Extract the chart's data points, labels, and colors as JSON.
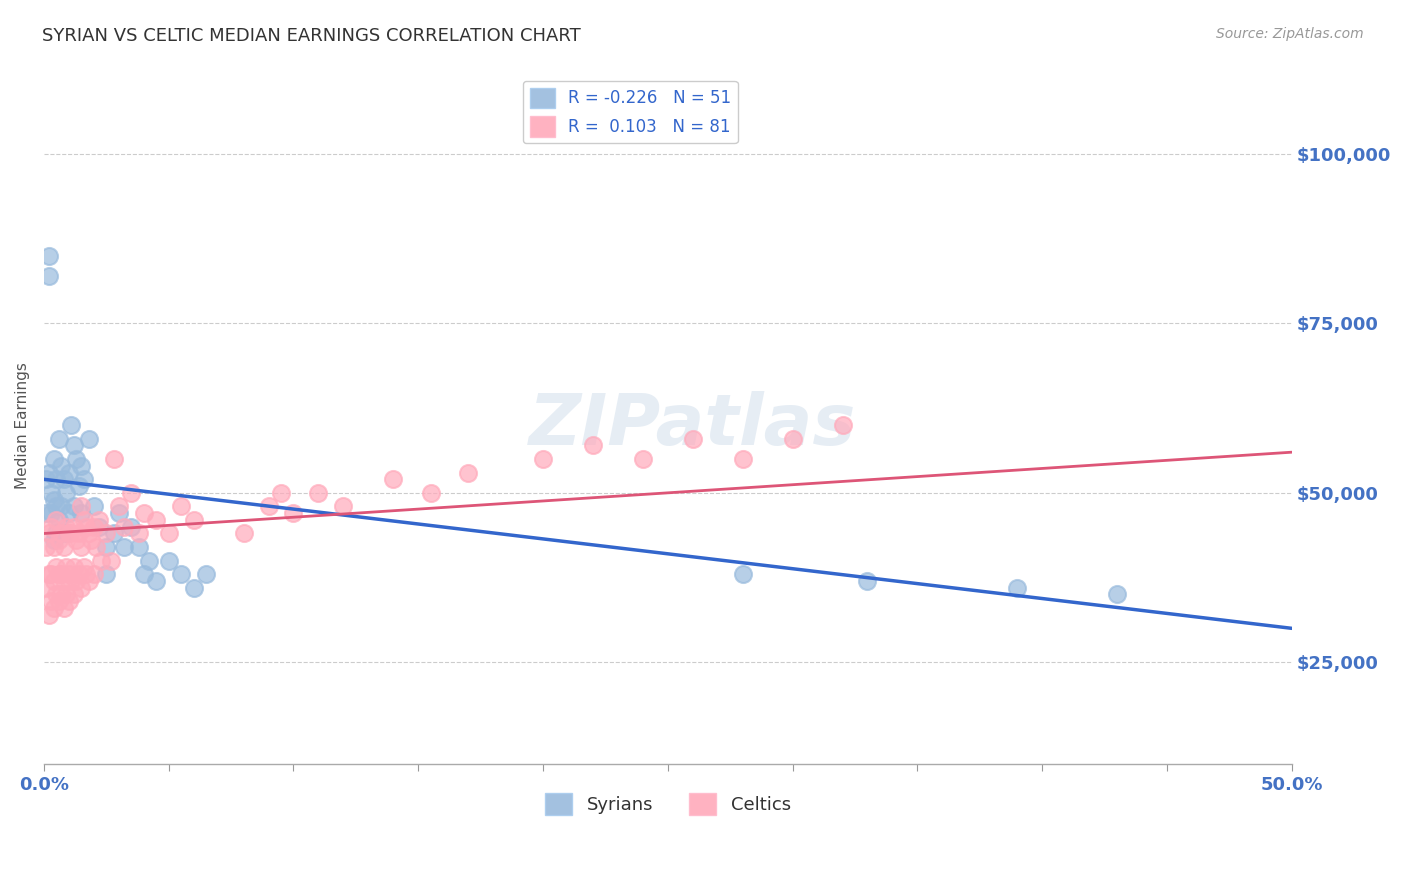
{
  "title": "SYRIAN VS CELTIC MEDIAN EARNINGS CORRELATION CHART",
  "source": "Source: ZipAtlas.com",
  "ylabel": "Median Earnings",
  "xlim": [
    0,
    0.5
  ],
  "ylim": [
    10000,
    110000
  ],
  "yticks": [
    25000,
    50000,
    75000,
    100000
  ],
  "ytick_labels": [
    "$25,000",
    "$50,000",
    "$75,000",
    "$100,000"
  ],
  "ytick_color": "#4472c4",
  "xtick_color": "#4472c4",
  "grid_color": "#cccccc",
  "bg_color": "#ffffff",
  "blue_color": "#99bbdd",
  "pink_color": "#ffaabb",
  "blue_line_color": "#3366cc",
  "pink_line_color": "#dd5577",
  "legend_blue_label": "R = -0.226   N = 51",
  "legend_pink_label": "R =  0.103   N = 81",
  "watermark": "ZIPatlas",
  "legend_labels": [
    "Syrians",
    "Celtics"
  ],
  "blue_line_x0": 0.0,
  "blue_line_y0": 52000,
  "blue_line_x1": 0.5,
  "blue_line_y1": 30000,
  "pink_line_x0": 0.0,
  "pink_line_y0": 44000,
  "pink_line_x1": 0.5,
  "pink_line_y1": 56000,
  "blue_scatter_x": [
    0.001,
    0.001,
    0.002,
    0.002,
    0.002,
    0.003,
    0.003,
    0.004,
    0.004,
    0.004,
    0.005,
    0.005,
    0.005,
    0.006,
    0.006,
    0.007,
    0.007,
    0.008,
    0.008,
    0.009,
    0.01,
    0.01,
    0.011,
    0.012,
    0.012,
    0.013,
    0.014,
    0.015,
    0.015,
    0.016,
    0.018,
    0.02,
    0.022,
    0.025,
    0.025,
    0.028,
    0.03,
    0.032,
    0.035,
    0.038,
    0.04,
    0.042,
    0.045,
    0.05,
    0.055,
    0.06,
    0.065,
    0.28,
    0.33,
    0.39,
    0.43
  ],
  "blue_scatter_y": [
    52000,
    47000,
    53000,
    85000,
    82000,
    50000,
    47000,
    55000,
    49000,
    43000,
    52000,
    48000,
    44000,
    58000,
    46000,
    54000,
    48000,
    52000,
    44000,
    50000,
    53000,
    47000,
    60000,
    57000,
    48000,
    55000,
    51000,
    54000,
    47000,
    52000,
    58000,
    48000,
    45000,
    42000,
    38000,
    44000,
    47000,
    42000,
    45000,
    42000,
    38000,
    40000,
    37000,
    40000,
    38000,
    36000,
    38000,
    38000,
    37000,
    36000,
    35000
  ],
  "pink_scatter_x": [
    0.001,
    0.001,
    0.002,
    0.002,
    0.002,
    0.003,
    0.003,
    0.003,
    0.004,
    0.004,
    0.004,
    0.005,
    0.005,
    0.005,
    0.006,
    0.006,
    0.006,
    0.007,
    0.007,
    0.007,
    0.008,
    0.008,
    0.008,
    0.009,
    0.009,
    0.009,
    0.01,
    0.01,
    0.01,
    0.011,
    0.011,
    0.012,
    0.012,
    0.012,
    0.013,
    0.013,
    0.014,
    0.014,
    0.015,
    0.015,
    0.015,
    0.016,
    0.016,
    0.017,
    0.017,
    0.018,
    0.018,
    0.019,
    0.02,
    0.02,
    0.021,
    0.022,
    0.023,
    0.025,
    0.027,
    0.028,
    0.03,
    0.032,
    0.035,
    0.038,
    0.04,
    0.045,
    0.05,
    0.055,
    0.06,
    0.08,
    0.09,
    0.095,
    0.1,
    0.11,
    0.12,
    0.14,
    0.155,
    0.17,
    0.2,
    0.22,
    0.24,
    0.26,
    0.28,
    0.3,
    0.32
  ],
  "pink_scatter_y": [
    42000,
    36000,
    44000,
    38000,
    32000,
    45000,
    38000,
    34000,
    42000,
    37000,
    33000,
    46000,
    39000,
    35000,
    43000,
    38000,
    34000,
    44000,
    38000,
    35000,
    42000,
    37000,
    33000,
    45000,
    39000,
    35000,
    44000,
    38000,
    34000,
    44000,
    37000,
    45000,
    39000,
    35000,
    43000,
    37000,
    44000,
    38000,
    48000,
    42000,
    36000,
    46000,
    39000,
    45000,
    38000,
    44000,
    37000,
    43000,
    45000,
    38000,
    42000,
    46000,
    40000,
    44000,
    40000,
    55000,
    48000,
    45000,
    50000,
    44000,
    47000,
    46000,
    44000,
    48000,
    46000,
    44000,
    48000,
    50000,
    47000,
    50000,
    48000,
    52000,
    50000,
    53000,
    55000,
    57000,
    55000,
    58000,
    55000,
    58000,
    60000
  ]
}
